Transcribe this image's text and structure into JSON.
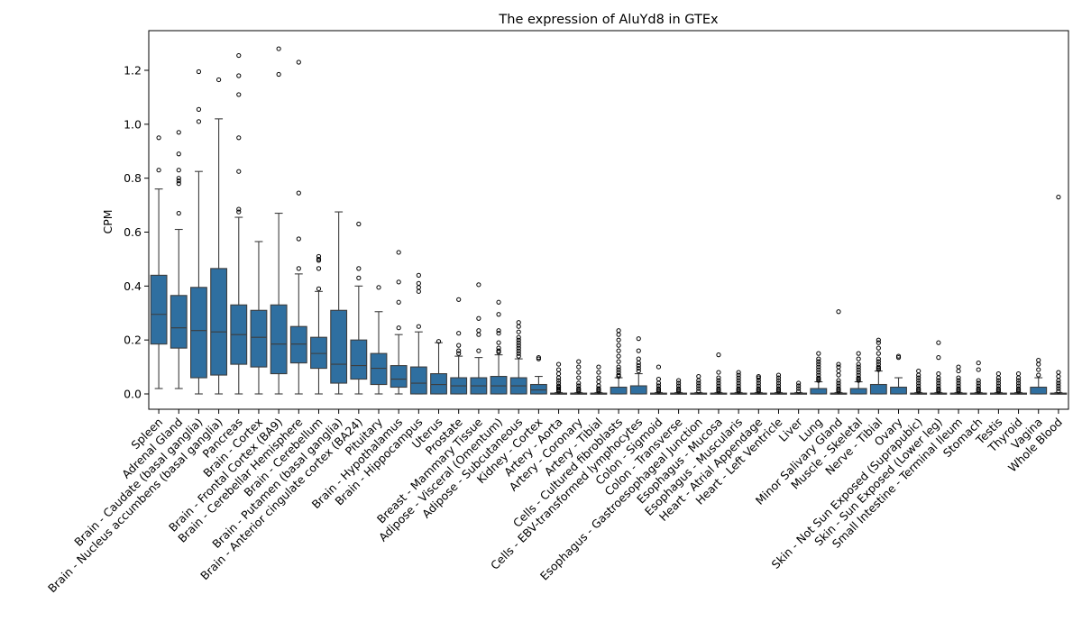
{
  "chart_data": {
    "type": "box",
    "title": "The expression of AluYd8 in GTEx",
    "ylabel": "CPM",
    "xlabel": "",
    "ylim": [
      -0.06,
      1.35
    ],
    "yticks": [
      "0.0",
      "0.2",
      "0.4",
      "0.6",
      "0.8",
      "1.0",
      "1.2"
    ],
    "grid": false,
    "legend": "none",
    "box_color": "#2f6fa0",
    "categories": [
      "Spleen",
      "Adrenal Gland",
      "Brain - Caudate (basal ganglia)",
      "Brain - Nucleus accumbens (basal ganglia)",
      "Pancreas",
      "Brain - Cortex",
      "Brain - Frontal Cortex (BA9)",
      "Brain - Cerebellar Hemisphere",
      "Brain - Cerebellum",
      "Brain - Putamen (basal ganglia)",
      "Brain - Anterior cingulate cortex (BA24)",
      "Pituitary",
      "Brain - Hypothalamus",
      "Brain - Hippocampus",
      "Uterus",
      "Prostate",
      "Breast - Mammary Tissue",
      "Adipose - Visceral (Omentum)",
      "Adipose - Subcutaneous",
      "Kidney - Cortex",
      "Artery - Aorta",
      "Artery - Coronary",
      "Artery - Tibial",
      "Cells - Cultured fibroblasts",
      "Cells - EBV-transformed lymphocytes",
      "Colon - Sigmoid",
      "Colon - Transverse",
      "Esophagus - Gastroesophageal Junction",
      "Esophagus - Mucosa",
      "Esophagus - Muscularis",
      "Heart - Atrial Appendage",
      "Heart - Left Ventricle",
      "Liver",
      "Lung",
      "Minor Salivary Gland",
      "Muscle - Skeletal",
      "Nerve - Tibial",
      "Ovary",
      "Skin - Not Sun Exposed (Suprapubic)",
      "Skin - Sun Exposed (Lower leg)",
      "Small Intestine - Terminal Ileum",
      "Stomach",
      "Testis",
      "Thyroid",
      "Vagina",
      "Whole Blood"
    ],
    "boxes": [
      {
        "whislo": 0.02,
        "q1": 0.185,
        "med": 0.295,
        "q3": 0.44,
        "whishi": 0.76,
        "fliers": [
          0.83,
          0.95
        ]
      },
      {
        "whislo": 0.02,
        "q1": 0.17,
        "med": 0.245,
        "q3": 0.365,
        "whishi": 0.61,
        "fliers": [
          0.67,
          0.78,
          0.79,
          0.8,
          0.83,
          0.89,
          0.97
        ]
      },
      {
        "whislo": 0.0,
        "q1": 0.06,
        "med": 0.235,
        "q3": 0.395,
        "whishi": 0.825,
        "fliers": [
          1.01,
          1.055,
          1.195
        ]
      },
      {
        "whislo": 0.0,
        "q1": 0.07,
        "med": 0.23,
        "q3": 0.465,
        "whishi": 1.02,
        "fliers": [
          1.165
        ]
      },
      {
        "whislo": 0.0,
        "q1": 0.11,
        "med": 0.22,
        "q3": 0.33,
        "whishi": 0.655,
        "fliers": [
          0.675,
          0.685,
          0.825,
          0.95,
          1.11,
          1.18,
          1.255
        ]
      },
      {
        "whislo": 0.0,
        "q1": 0.1,
        "med": 0.21,
        "q3": 0.31,
        "whishi": 0.565,
        "fliers": []
      },
      {
        "whislo": 0.0,
        "q1": 0.075,
        "med": 0.185,
        "q3": 0.33,
        "whishi": 0.67,
        "fliers": [
          1.185,
          1.28
        ]
      },
      {
        "whislo": 0.0,
        "q1": 0.115,
        "med": 0.185,
        "q3": 0.25,
        "whishi": 0.445,
        "fliers": [
          0.465,
          0.575,
          0.745,
          1.23
        ]
      },
      {
        "whislo": 0.0,
        "q1": 0.095,
        "med": 0.15,
        "q3": 0.21,
        "whishi": 0.38,
        "fliers": [
          0.39,
          0.465,
          0.495,
          0.5,
          0.51
        ]
      },
      {
        "whislo": 0.0,
        "q1": 0.04,
        "med": 0.11,
        "q3": 0.31,
        "whishi": 0.675,
        "fliers": []
      },
      {
        "whislo": 0.0,
        "q1": 0.055,
        "med": 0.105,
        "q3": 0.2,
        "whishi": 0.4,
        "fliers": [
          0.43,
          0.465,
          0.63
        ]
      },
      {
        "whislo": 0.0,
        "q1": 0.035,
        "med": 0.095,
        "q3": 0.15,
        "whishi": 0.305,
        "fliers": [
          0.395
        ]
      },
      {
        "whislo": 0.0,
        "q1": 0.025,
        "med": 0.055,
        "q3": 0.105,
        "whishi": 0.22,
        "fliers": [
          0.245,
          0.34,
          0.415,
          0.525
        ]
      },
      {
        "whislo": 0.0,
        "q1": 0.0,
        "med": 0.04,
        "q3": 0.1,
        "whishi": 0.23,
        "fliers": [
          0.25,
          0.38,
          0.395,
          0.41,
          0.44
        ]
      },
      {
        "whislo": 0.0,
        "q1": 0.0,
        "med": 0.035,
        "q3": 0.075,
        "whishi": 0.19,
        "fliers": [
          0.195
        ]
      },
      {
        "whislo": 0.0,
        "q1": 0.0,
        "med": 0.03,
        "q3": 0.06,
        "whishi": 0.14,
        "fliers": [
          0.15,
          0.16,
          0.18,
          0.225,
          0.35
        ]
      },
      {
        "whislo": 0.0,
        "q1": 0.0,
        "med": 0.03,
        "q3": 0.06,
        "whishi": 0.135,
        "fliers": [
          0.16,
          0.22,
          0.235,
          0.28,
          0.405
        ]
      },
      {
        "whislo": 0.0,
        "q1": 0.0,
        "med": 0.03,
        "q3": 0.065,
        "whishi": 0.145,
        "fliers": [
          0.155,
          0.16,
          0.17,
          0.19,
          0.225,
          0.235,
          0.295,
          0.34
        ]
      },
      {
        "whislo": 0.0,
        "q1": 0.0,
        "med": 0.03,
        "q3": 0.06,
        "whishi": 0.13,
        "fliers": [
          0.14,
          0.15,
          0.16,
          0.17,
          0.18,
          0.19,
          0.2,
          0.21,
          0.23,
          0.25,
          0.265
        ]
      },
      {
        "whislo": 0.0,
        "q1": 0.0,
        "med": 0.015,
        "q3": 0.035,
        "whishi": 0.065,
        "fliers": [
          0.13,
          0.135
        ]
      },
      {
        "whislo": 0.0,
        "q1": 0.0,
        "med": 0.0,
        "q3": 0.003,
        "whishi": 0.005,
        "fliers": [
          0.01,
          0.015,
          0.02,
          0.025,
          0.03,
          0.04,
          0.05,
          0.06,
          0.075,
          0.09,
          0.11
        ]
      },
      {
        "whislo": 0.0,
        "q1": 0.0,
        "med": 0.0,
        "q3": 0.003,
        "whishi": 0.005,
        "fliers": [
          0.01,
          0.015,
          0.02,
          0.03,
          0.04,
          0.06,
          0.08,
          0.1,
          0.12
        ]
      },
      {
        "whislo": 0.0,
        "q1": 0.0,
        "med": 0.0,
        "q3": 0.003,
        "whishi": 0.005,
        "fliers": [
          0.01,
          0.015,
          0.02,
          0.03,
          0.045,
          0.06,
          0.08,
          0.1
        ]
      },
      {
        "whislo": 0.0,
        "q1": 0.0,
        "med": 0.0,
        "q3": 0.025,
        "whishi": 0.06,
        "fliers": [
          0.065,
          0.07,
          0.08,
          0.09,
          0.1,
          0.12,
          0.14,
          0.16,
          0.18,
          0.2,
          0.22,
          0.235
        ]
      },
      {
        "whislo": 0.0,
        "q1": 0.0,
        "med": 0.0,
        "q3": 0.03,
        "whishi": 0.075,
        "fliers": [
          0.085,
          0.095,
          0.105,
          0.115,
          0.13,
          0.16,
          0.205
        ]
      },
      {
        "whislo": 0.0,
        "q1": 0.0,
        "med": 0.0,
        "q3": 0.003,
        "whishi": 0.005,
        "fliers": [
          0.01,
          0.015,
          0.02,
          0.03,
          0.04,
          0.055,
          0.1
        ]
      },
      {
        "whislo": 0.0,
        "q1": 0.0,
        "med": 0.0,
        "q3": 0.003,
        "whishi": 0.005,
        "fliers": [
          0.01,
          0.015,
          0.02,
          0.03,
          0.04,
          0.05
        ]
      },
      {
        "whislo": 0.0,
        "q1": 0.0,
        "med": 0.0,
        "q3": 0.003,
        "whishi": 0.005,
        "fliers": [
          0.01,
          0.02,
          0.03,
          0.04,
          0.05,
          0.065
        ]
      },
      {
        "whislo": 0.0,
        "q1": 0.0,
        "med": 0.0,
        "q3": 0.003,
        "whishi": 0.005,
        "fliers": [
          0.01,
          0.015,
          0.02,
          0.03,
          0.04,
          0.05,
          0.06,
          0.08,
          0.145
        ]
      },
      {
        "whislo": 0.0,
        "q1": 0.0,
        "med": 0.0,
        "q3": 0.003,
        "whishi": 0.005,
        "fliers": [
          0.01,
          0.015,
          0.02,
          0.03,
          0.04,
          0.05,
          0.06,
          0.07,
          0.08
        ]
      },
      {
        "whislo": 0.0,
        "q1": 0.0,
        "med": 0.0,
        "q3": 0.003,
        "whishi": 0.005,
        "fliers": [
          0.01,
          0.015,
          0.02,
          0.03,
          0.04,
          0.05,
          0.06,
          0.065
        ]
      },
      {
        "whislo": 0.0,
        "q1": 0.0,
        "med": 0.0,
        "q3": 0.003,
        "whishi": 0.005,
        "fliers": [
          0.01,
          0.015,
          0.02,
          0.03,
          0.04,
          0.05,
          0.06,
          0.07
        ]
      },
      {
        "whislo": 0.0,
        "q1": 0.0,
        "med": 0.0,
        "q3": 0.003,
        "whishi": 0.005,
        "fliers": [
          0.01,
          0.02,
          0.03,
          0.04
        ]
      },
      {
        "whislo": 0.0,
        "q1": 0.0,
        "med": 0.0,
        "q3": 0.02,
        "whishi": 0.045,
        "fliers": [
          0.05,
          0.055,
          0.06,
          0.07,
          0.08,
          0.09,
          0.1,
          0.11,
          0.12,
          0.13,
          0.15
        ]
      },
      {
        "whislo": 0.0,
        "q1": 0.0,
        "med": 0.0,
        "q3": 0.003,
        "whishi": 0.005,
        "fliers": [
          0.01,
          0.015,
          0.02,
          0.03,
          0.04,
          0.05,
          0.07,
          0.085,
          0.1,
          0.11,
          0.305
        ]
      },
      {
        "whislo": 0.0,
        "q1": 0.0,
        "med": 0.0,
        "q3": 0.02,
        "whishi": 0.045,
        "fliers": [
          0.05,
          0.055,
          0.06,
          0.07,
          0.08,
          0.09,
          0.1,
          0.11,
          0.13,
          0.15
        ]
      },
      {
        "whislo": 0.0,
        "q1": 0.0,
        "med": 0.0,
        "q3": 0.035,
        "whishi": 0.085,
        "fliers": [
          0.09,
          0.095,
          0.1,
          0.11,
          0.12,
          0.13,
          0.15,
          0.17,
          0.19,
          0.2
        ]
      },
      {
        "whislo": 0.0,
        "q1": 0.0,
        "med": 0.0,
        "q3": 0.025,
        "whishi": 0.06,
        "fliers": [
          0.135,
          0.14
        ]
      },
      {
        "whislo": 0.0,
        "q1": 0.0,
        "med": 0.0,
        "q3": 0.003,
        "whishi": 0.005,
        "fliers": [
          0.01,
          0.015,
          0.02,
          0.03,
          0.04,
          0.05,
          0.06,
          0.07,
          0.085
        ]
      },
      {
        "whislo": 0.0,
        "q1": 0.0,
        "med": 0.0,
        "q3": 0.003,
        "whishi": 0.005,
        "fliers": [
          0.01,
          0.015,
          0.02,
          0.03,
          0.04,
          0.05,
          0.06,
          0.075,
          0.135,
          0.19
        ]
      },
      {
        "whislo": 0.0,
        "q1": 0.0,
        "med": 0.0,
        "q3": 0.003,
        "whishi": 0.005,
        "fliers": [
          0.01,
          0.015,
          0.02,
          0.03,
          0.04,
          0.05,
          0.06,
          0.085,
          0.1
        ]
      },
      {
        "whislo": 0.0,
        "q1": 0.0,
        "med": 0.0,
        "q3": 0.003,
        "whishi": 0.005,
        "fliers": [
          0.01,
          0.015,
          0.02,
          0.03,
          0.04,
          0.05,
          0.09,
          0.115
        ]
      },
      {
        "whislo": 0.0,
        "q1": 0.0,
        "med": 0.0,
        "q3": 0.003,
        "whishi": 0.005,
        "fliers": [
          0.01,
          0.015,
          0.02,
          0.03,
          0.04,
          0.05,
          0.06,
          0.075
        ]
      },
      {
        "whislo": 0.0,
        "q1": 0.0,
        "med": 0.0,
        "q3": 0.003,
        "whishi": 0.005,
        "fliers": [
          0.01,
          0.015,
          0.02,
          0.03,
          0.04,
          0.05,
          0.06,
          0.075
        ]
      },
      {
        "whislo": 0.0,
        "q1": 0.0,
        "med": 0.0,
        "q3": 0.025,
        "whishi": 0.06,
        "fliers": [
          0.07,
          0.09,
          0.11,
          0.125
        ]
      },
      {
        "whislo": 0.0,
        "q1": 0.0,
        "med": 0.0,
        "q3": 0.003,
        "whishi": 0.005,
        "fliers": [
          0.01,
          0.02,
          0.03,
          0.04,
          0.05,
          0.065,
          0.08,
          0.73
        ]
      }
    ]
  }
}
